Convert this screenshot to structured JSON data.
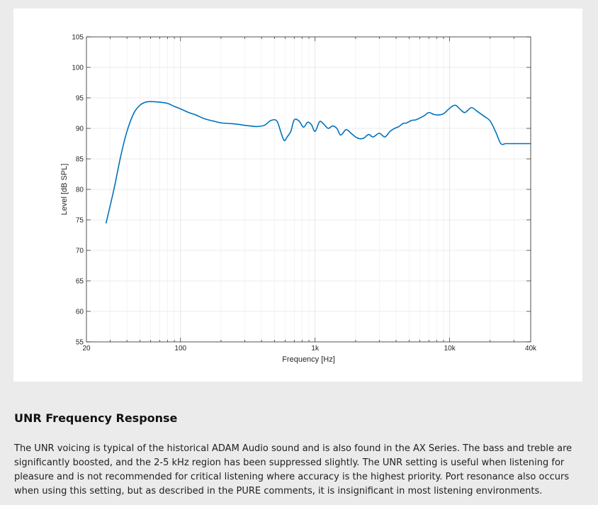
{
  "chart_data": {
    "type": "line",
    "xlabel": "Frequency [Hz]",
    "ylabel": "Level [dB SPL]",
    "xscale": "log",
    "xlim": [
      20,
      40000
    ],
    "ylim": [
      55,
      105
    ],
    "xticks": [
      20,
      100,
      1000,
      10000,
      40000
    ],
    "xtick_labels": [
      "20",
      "100",
      "1k",
      "10k",
      "40k"
    ],
    "yticks": [
      55,
      60,
      65,
      70,
      75,
      80,
      85,
      90,
      95,
      100,
      105
    ],
    "grid": true,
    "line_color": "#0072bd",
    "series": [
      {
        "x": [
          28,
          32,
          36,
          40,
          45,
          50,
          55,
          60,
          70,
          80,
          90,
          100,
          115,
          130,
          150,
          175,
          200,
          230,
          260,
          300,
          330,
          370,
          420,
          470,
          520,
          560,
          590,
          620,
          660,
          700,
          760,
          820,
          880,
          940,
          1000,
          1080,
          1160,
          1250,
          1350,
          1450,
          1550,
          1700,
          1850,
          2000,
          2150,
          2300,
          2500,
          2700,
          3000,
          3300,
          3600,
          3900,
          4200,
          4500,
          4800,
          5200,
          5600,
          6000,
          6500,
          7000,
          7600,
          8200,
          9000,
          10000,
          11000,
          12000,
          13000,
          14500,
          16000,
          18000,
          20000,
          22000,
          24000,
          26000,
          28000,
          30000,
          32000,
          34000,
          36000,
          38000,
          40000
        ],
        "y": [
          74.5,
          80,
          85.5,
          89.5,
          92.5,
          93.8,
          94.3,
          94.4,
          94.3,
          94.1,
          93.6,
          93.2,
          92.6,
          92.2,
          91.6,
          91.2,
          90.9,
          90.8,
          90.7,
          90.5,
          90.4,
          90.3,
          90.5,
          91.3,
          91.2,
          89.2,
          88,
          88.6,
          89.5,
          91.4,
          91.2,
          90.2,
          91,
          90.6,
          89.5,
          91.1,
          90.7,
          90,
          90.4,
          90,
          88.9,
          89.8,
          89.2,
          88.6,
          88.3,
          88.4,
          89,
          88.6,
          89.2,
          88.6,
          89.5,
          90,
          90.3,
          90.8,
          90.9,
          91.3,
          91.4,
          91.7,
          92.1,
          92.6,
          92.3,
          92.2,
          92.4,
          93.3,
          93.8,
          93.1,
          92.6,
          93.4,
          92.8,
          92,
          91.2,
          89.4,
          87.5,
          87.5,
          87.5,
          87.5,
          87.5,
          87.5,
          87.5,
          87.5,
          87.5
        ]
      }
    ]
  },
  "description": {
    "title": "UNR Frequency Response",
    "body": "The UNR voicing is typical of the historical ADAM Audio sound and is also found in the AX Series. The bass and treble are significantly boosted, and the 2-5 kHz region has been suppressed slightly. The UNR setting is useful when listening for pleasure and is not recommended for critical listening where accuracy is the highest priority. Port resonance also occurs when using this setting, but as described in the PURE comments, it is insignificant in most listening environments."
  }
}
